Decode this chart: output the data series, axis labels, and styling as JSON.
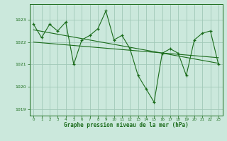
{
  "hours": [
    0,
    1,
    2,
    3,
    4,
    5,
    6,
    7,
    8,
    9,
    10,
    11,
    12,
    13,
    14,
    15,
    16,
    17,
    18,
    19,
    20,
    21,
    22,
    23
  ],
  "pressure": [
    1022.8,
    1022.2,
    1022.8,
    1022.5,
    1022.9,
    1021.0,
    1022.1,
    1022.3,
    1022.6,
    1023.4,
    1022.1,
    1022.3,
    1021.7,
    1020.5,
    1019.9,
    1019.3,
    1021.5,
    1021.7,
    1021.5,
    1020.5,
    1022.1,
    1022.4,
    1022.5,
    1021.0
  ],
  "trend_x": [
    0,
    23
  ],
  "trend_y": [
    1022.55,
    1021.05
  ],
  "trend2_x": [
    0,
    23
  ],
  "trend2_y": [
    1022.0,
    1021.3
  ],
  "line_color": "#1a6b1a",
  "bg_color": "#cbe8dc",
  "grid_color": "#a0c8b8",
  "axis_color": "#1a6b1a",
  "ylabel_ticks": [
    1019,
    1020,
    1021,
    1022,
    1023
  ],
  "xlabel": "Graphe pression niveau de la mer (hPa)",
  "ylim": [
    1018.7,
    1023.7
  ],
  "xlim": [
    -0.5,
    23.5
  ]
}
